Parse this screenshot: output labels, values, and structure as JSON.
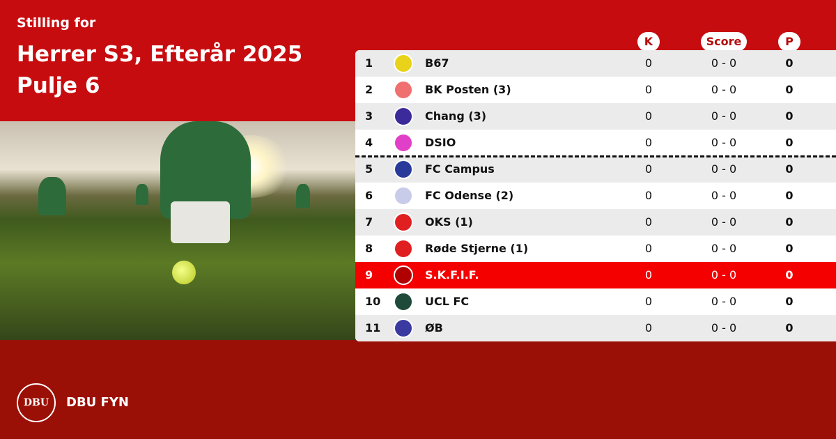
{
  "header": {
    "subtitle": "Stilling for",
    "title_line1": "Herrer S3, Efterår 2025",
    "title_line2": "Pulje 6"
  },
  "columns": {
    "k": "K",
    "score": "Score",
    "p": "P"
  },
  "rows": [
    {
      "rank": "1",
      "team": "B67",
      "k": "0",
      "score": "0 - 0",
      "p": "0",
      "logo_color": "#e8d21a"
    },
    {
      "rank": "2",
      "team": "BK Posten (3)",
      "k": "0",
      "score": "0 - 0",
      "p": "0",
      "logo_color": "#f07070"
    },
    {
      "rank": "3",
      "team": "Chang (3)",
      "k": "0",
      "score": "0 - 0",
      "p": "0",
      "logo_color": "#3a2a9a"
    },
    {
      "rank": "4",
      "team": "DSIO",
      "k": "0",
      "score": "0 - 0",
      "p": "0",
      "logo_color": "#e040c8"
    },
    {
      "rank": "5",
      "team": "FC Campus",
      "k": "0",
      "score": "0 - 0",
      "p": "0",
      "logo_color": "#2a3a9a"
    },
    {
      "rank": "6",
      "team": "FC Odense (2)",
      "k": "0",
      "score": "0 - 0",
      "p": "0",
      "logo_color": "#c8cce8"
    },
    {
      "rank": "7",
      "team": "OKS (1)",
      "k": "0",
      "score": "0 - 0",
      "p": "0",
      "logo_color": "#e02020"
    },
    {
      "rank": "8",
      "team": "Røde Stjerne  (1)",
      "k": "0",
      "score": "0 - 0",
      "p": "0",
      "logo_color": "#e02020"
    },
    {
      "rank": "9",
      "team": "S.K.F.I.F.",
      "k": "0",
      "score": "0 - 0",
      "p": "0",
      "logo_color": "#b00000",
      "highlighted": true
    },
    {
      "rank": "10",
      "team": "UCL FC",
      "k": "0",
      "score": "0 - 0",
      "p": "0",
      "logo_color": "#1e4a3a"
    },
    {
      "rank": "11",
      "team": "ØB",
      "k": "0",
      "score": "0 - 0",
      "p": "0",
      "logo_color": "#3a3aa0"
    }
  ],
  "footer": {
    "logo_text": "DBU",
    "org": "DBU FYN"
  },
  "colors": {
    "top": "#c70c0f",
    "bottom": "#9b1006",
    "highlight": "#f50000"
  }
}
